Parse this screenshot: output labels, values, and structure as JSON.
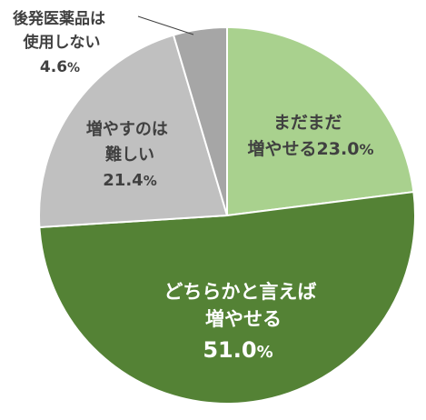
{
  "chart_data": {
    "type": "pie",
    "title": "",
    "start_angle_deg": 0,
    "direction": "clockwise",
    "slices": [
      {
        "label": "まだまだ増やせる",
        "label_lines": [
          "まだまだ",
          "増やせる"
        ],
        "value": 23.0,
        "value_text": "23.0",
        "unit": "%",
        "color": "#a9d18e"
      },
      {
        "label": "どちらかと言えば増やせる",
        "label_lines": [
          "どちらかと言えば",
          "増やせる"
        ],
        "value": 51.0,
        "value_text": "51.0",
        "unit": "%",
        "color": "#548235"
      },
      {
        "label": "増やすのは難しい",
        "label_lines": [
          "増やすのは",
          "難しい"
        ],
        "value": 21.4,
        "value_text": "21.4",
        "unit": "%",
        "color": "#c0c0c0"
      },
      {
        "label": "後発医薬品は使用しない",
        "label_lines": [
          "後発医薬品は",
          "使用しない"
        ],
        "value": 4.6,
        "value_text": "4.6",
        "unit": "%",
        "color": "#a6a6a6"
      }
    ]
  }
}
